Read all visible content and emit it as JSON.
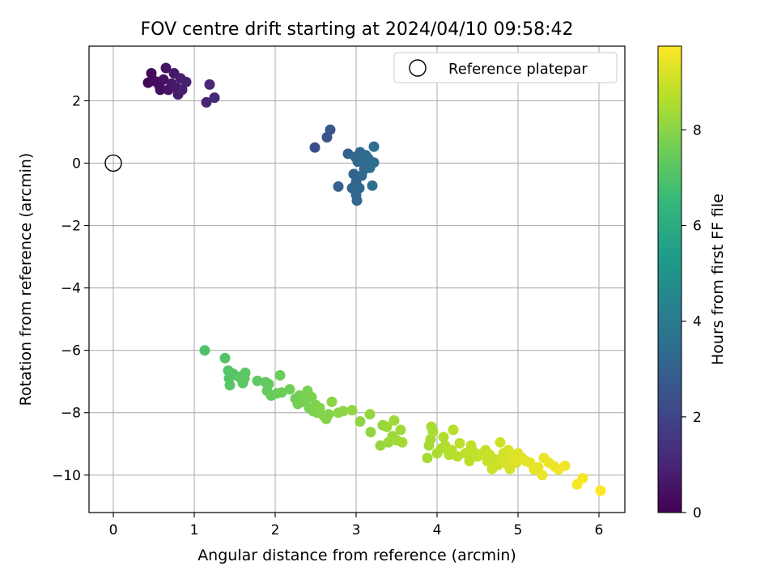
{
  "chart_data": {
    "type": "scatter",
    "title": "FOV centre drift starting at 2024/04/10 09:58:42",
    "xlabel": "Angular distance from reference (arcmin)",
    "ylabel": "Rotation from reference (arcmin)",
    "xlim": [
      -0.3,
      6.32
    ],
    "ylim": [
      -11.2,
      3.75
    ],
    "xticks": [
      0,
      1,
      2,
      3,
      4,
      5,
      6
    ],
    "yticks": [
      2,
      0,
      -2,
      -4,
      -6,
      -8,
      -10
    ],
    "grid": true,
    "legend": {
      "placement": "top-right",
      "entries": [
        "Reference platepar"
      ]
    },
    "reference_point": {
      "x": 0,
      "y": 0,
      "marker": "open-circle"
    },
    "colorbar": {
      "label": "Hours from first FF file",
      "colormap": "viridis",
      "range": [
        0,
        9.75
      ],
      "ticks": [
        0,
        2,
        4,
        6,
        8
      ]
    },
    "points": [
      [
        0.43,
        2.58,
        0.1
      ],
      [
        0.47,
        2.88,
        0.2
      ],
      [
        0.52,
        2.62,
        0.3
      ],
      [
        0.57,
        2.48,
        0.35
      ],
      [
        0.58,
        2.35,
        0.4
      ],
      [
        0.62,
        2.68,
        0.45
      ],
      [
        0.65,
        3.05,
        0.5
      ],
      [
        0.68,
        2.35,
        0.55
      ],
      [
        0.72,
        2.55,
        0.6
      ],
      [
        0.75,
        2.88,
        0.65
      ],
      [
        0.78,
        2.42,
        0.7
      ],
      [
        0.8,
        2.2,
        0.75
      ],
      [
        0.83,
        2.72,
        0.8
      ],
      [
        0.85,
        2.35,
        0.85
      ],
      [
        0.9,
        2.6,
        0.9
      ],
      [
        1.15,
        1.95,
        1.0
      ],
      [
        1.19,
        2.52,
        1.05
      ],
      [
        1.25,
        2.1,
        1.1
      ],
      [
        2.49,
        0.5,
        2.3
      ],
      [
        2.64,
        0.83,
        2.5
      ],
      [
        2.68,
        1.07,
        2.6
      ],
      [
        2.78,
        -0.75,
        3.0
      ],
      [
        2.9,
        0.3,
        3.05
      ],
      [
        2.95,
        -0.8,
        3.1
      ],
      [
        2.97,
        -0.35,
        3.1
      ],
      [
        2.99,
        0.2,
        3.15
      ],
      [
        3.0,
        -0.6,
        3.15
      ],
      [
        3.0,
        -1.02,
        3.2
      ],
      [
        3.01,
        -1.2,
        3.2
      ],
      [
        3.02,
        0.05,
        3.25
      ],
      [
        3.04,
        -0.8,
        3.25
      ],
      [
        3.05,
        0.35,
        3.3
      ],
      [
        3.07,
        -0.4,
        3.3
      ],
      [
        3.08,
        0.1,
        3.35
      ],
      [
        3.1,
        -0.2,
        3.35
      ],
      [
        3.12,
        0.25,
        3.4
      ],
      [
        3.13,
        -0.05,
        3.4
      ],
      [
        3.15,
        0.15,
        3.45
      ],
      [
        3.17,
        -0.15,
        3.45
      ],
      [
        3.2,
        -0.72,
        3.5
      ],
      [
        3.22,
        0.02,
        3.5
      ],
      [
        3.22,
        0.53,
        3.55
      ],
      [
        1.13,
        -6.0,
        7.0
      ],
      [
        1.38,
        -6.25,
        7.05
      ],
      [
        1.42,
        -6.65,
        7.1
      ],
      [
        1.43,
        -6.9,
        7.1
      ],
      [
        1.44,
        -7.12,
        7.15
      ],
      [
        1.48,
        -6.75,
        7.15
      ],
      [
        1.55,
        -6.85,
        7.2
      ],
      [
        1.6,
        -7.05,
        7.2
      ],
      [
        1.62,
        -6.9,
        7.25
      ],
      [
        1.63,
        -6.72,
        7.25
      ],
      [
        1.78,
        -6.98,
        7.3
      ],
      [
        1.88,
        -7.02,
        7.35
      ],
      [
        1.9,
        -7.3,
        7.4
      ],
      [
        1.92,
        -7.08,
        7.4
      ],
      [
        1.95,
        -7.45,
        7.45
      ],
      [
        2.02,
        -7.38,
        7.5
      ],
      [
        2.06,
        -6.8,
        7.5
      ],
      [
        2.08,
        -7.35,
        7.55
      ],
      [
        2.18,
        -7.25,
        7.6
      ],
      [
        2.25,
        -7.55,
        7.6
      ],
      [
        2.28,
        -7.72,
        7.65
      ],
      [
        2.3,
        -7.45,
        7.65
      ],
      [
        2.35,
        -7.65,
        7.7
      ],
      [
        2.38,
        -7.55,
        7.7
      ],
      [
        2.4,
        -7.3,
        7.75
      ],
      [
        2.42,
        -7.85,
        7.75
      ],
      [
        2.45,
        -7.5,
        7.8
      ],
      [
        2.47,
        -7.95,
        7.8
      ],
      [
        2.5,
        -7.75,
        7.85
      ],
      [
        2.52,
        -8.0,
        7.85
      ],
      [
        2.55,
        -7.85,
        7.9
      ],
      [
        2.6,
        -8.1,
        7.9
      ],
      [
        2.63,
        -8.2,
        7.95
      ],
      [
        2.66,
        -8.05,
        7.95
      ],
      [
        2.7,
        -7.65,
        8.0
      ],
      [
        2.78,
        -8.0,
        8.0
      ],
      [
        2.84,
        -7.95,
        8.05
      ],
      [
        2.95,
        -7.92,
        8.1
      ],
      [
        3.05,
        -8.28,
        8.1
      ],
      [
        3.17,
        -8.05,
        8.15
      ],
      [
        3.18,
        -8.62,
        8.15
      ],
      [
        3.3,
        -9.05,
        8.2
      ],
      [
        3.33,
        -8.4,
        8.2
      ],
      [
        3.38,
        -8.45,
        8.25
      ],
      [
        3.4,
        -8.95,
        8.25
      ],
      [
        3.45,
        -8.75,
        8.3
      ],
      [
        3.47,
        -8.25,
        8.3
      ],
      [
        3.5,
        -8.88,
        8.35
      ],
      [
        3.55,
        -8.55,
        8.35
      ],
      [
        3.57,
        -8.95,
        8.4
      ],
      [
        3.88,
        -9.45,
        8.4
      ],
      [
        3.9,
        -9.05,
        8.45
      ],
      [
        3.92,
        -8.85,
        8.45
      ],
      [
        3.93,
        -8.45,
        8.5
      ],
      [
        3.95,
        -8.6,
        8.5
      ],
      [
        4.0,
        -9.3,
        8.55
      ],
      [
        4.05,
        -9.15,
        8.55
      ],
      [
        4.08,
        -8.78,
        8.6
      ],
      [
        4.1,
        -9.05,
        8.6
      ],
      [
        4.15,
        -9.35,
        8.65
      ],
      [
        4.18,
        -9.2,
        8.65
      ],
      [
        4.2,
        -8.55,
        8.7
      ],
      [
        4.25,
        -9.4,
        8.7
      ],
      [
        4.28,
        -8.98,
        8.75
      ],
      [
        4.35,
        -9.3,
        8.75
      ],
      [
        4.4,
        -9.55,
        8.8
      ],
      [
        4.42,
        -9.05,
        8.8
      ],
      [
        4.45,
        -9.25,
        8.85
      ],
      [
        4.5,
        -9.4,
        8.85
      ],
      [
        4.55,
        -9.32,
        8.9
      ],
      [
        4.6,
        -9.2,
        8.9
      ],
      [
        4.62,
        -9.55,
        8.95
      ],
      [
        4.65,
        -9.35,
        8.95
      ],
      [
        4.68,
        -9.8,
        9.0
      ],
      [
        4.72,
        -9.5,
        9.0
      ],
      [
        4.75,
        -9.68,
        9.05
      ],
      [
        4.78,
        -8.95,
        9.05
      ],
      [
        4.8,
        -9.45,
        9.1
      ],
      [
        4.82,
        -9.3,
        9.1
      ],
      [
        4.85,
        -9.62,
        9.15
      ],
      [
        4.88,
        -9.2,
        9.15
      ],
      [
        4.9,
        -9.8,
        9.2
      ],
      [
        4.92,
        -9.5,
        9.2
      ],
      [
        4.95,
        -9.38,
        9.25
      ],
      [
        4.98,
        -9.6,
        9.25
      ],
      [
        5.0,
        -9.3,
        9.3
      ],
      [
        5.05,
        -9.45,
        9.3
      ],
      [
        5.1,
        -9.55,
        9.35
      ],
      [
        5.15,
        -9.6,
        9.35
      ],
      [
        5.2,
        -9.82,
        9.4
      ],
      [
        5.25,
        -9.75,
        9.4
      ],
      [
        5.3,
        -10.0,
        9.45
      ],
      [
        5.32,
        -9.45,
        9.45
      ],
      [
        5.38,
        -9.6,
        9.5
      ],
      [
        5.45,
        -9.72,
        9.5
      ],
      [
        5.5,
        -9.82,
        9.55
      ],
      [
        5.58,
        -9.7,
        9.55
      ],
      [
        5.73,
        -10.3,
        9.6
      ],
      [
        5.8,
        -10.1,
        9.65
      ],
      [
        6.02,
        -10.5,
        9.75
      ]
    ]
  }
}
